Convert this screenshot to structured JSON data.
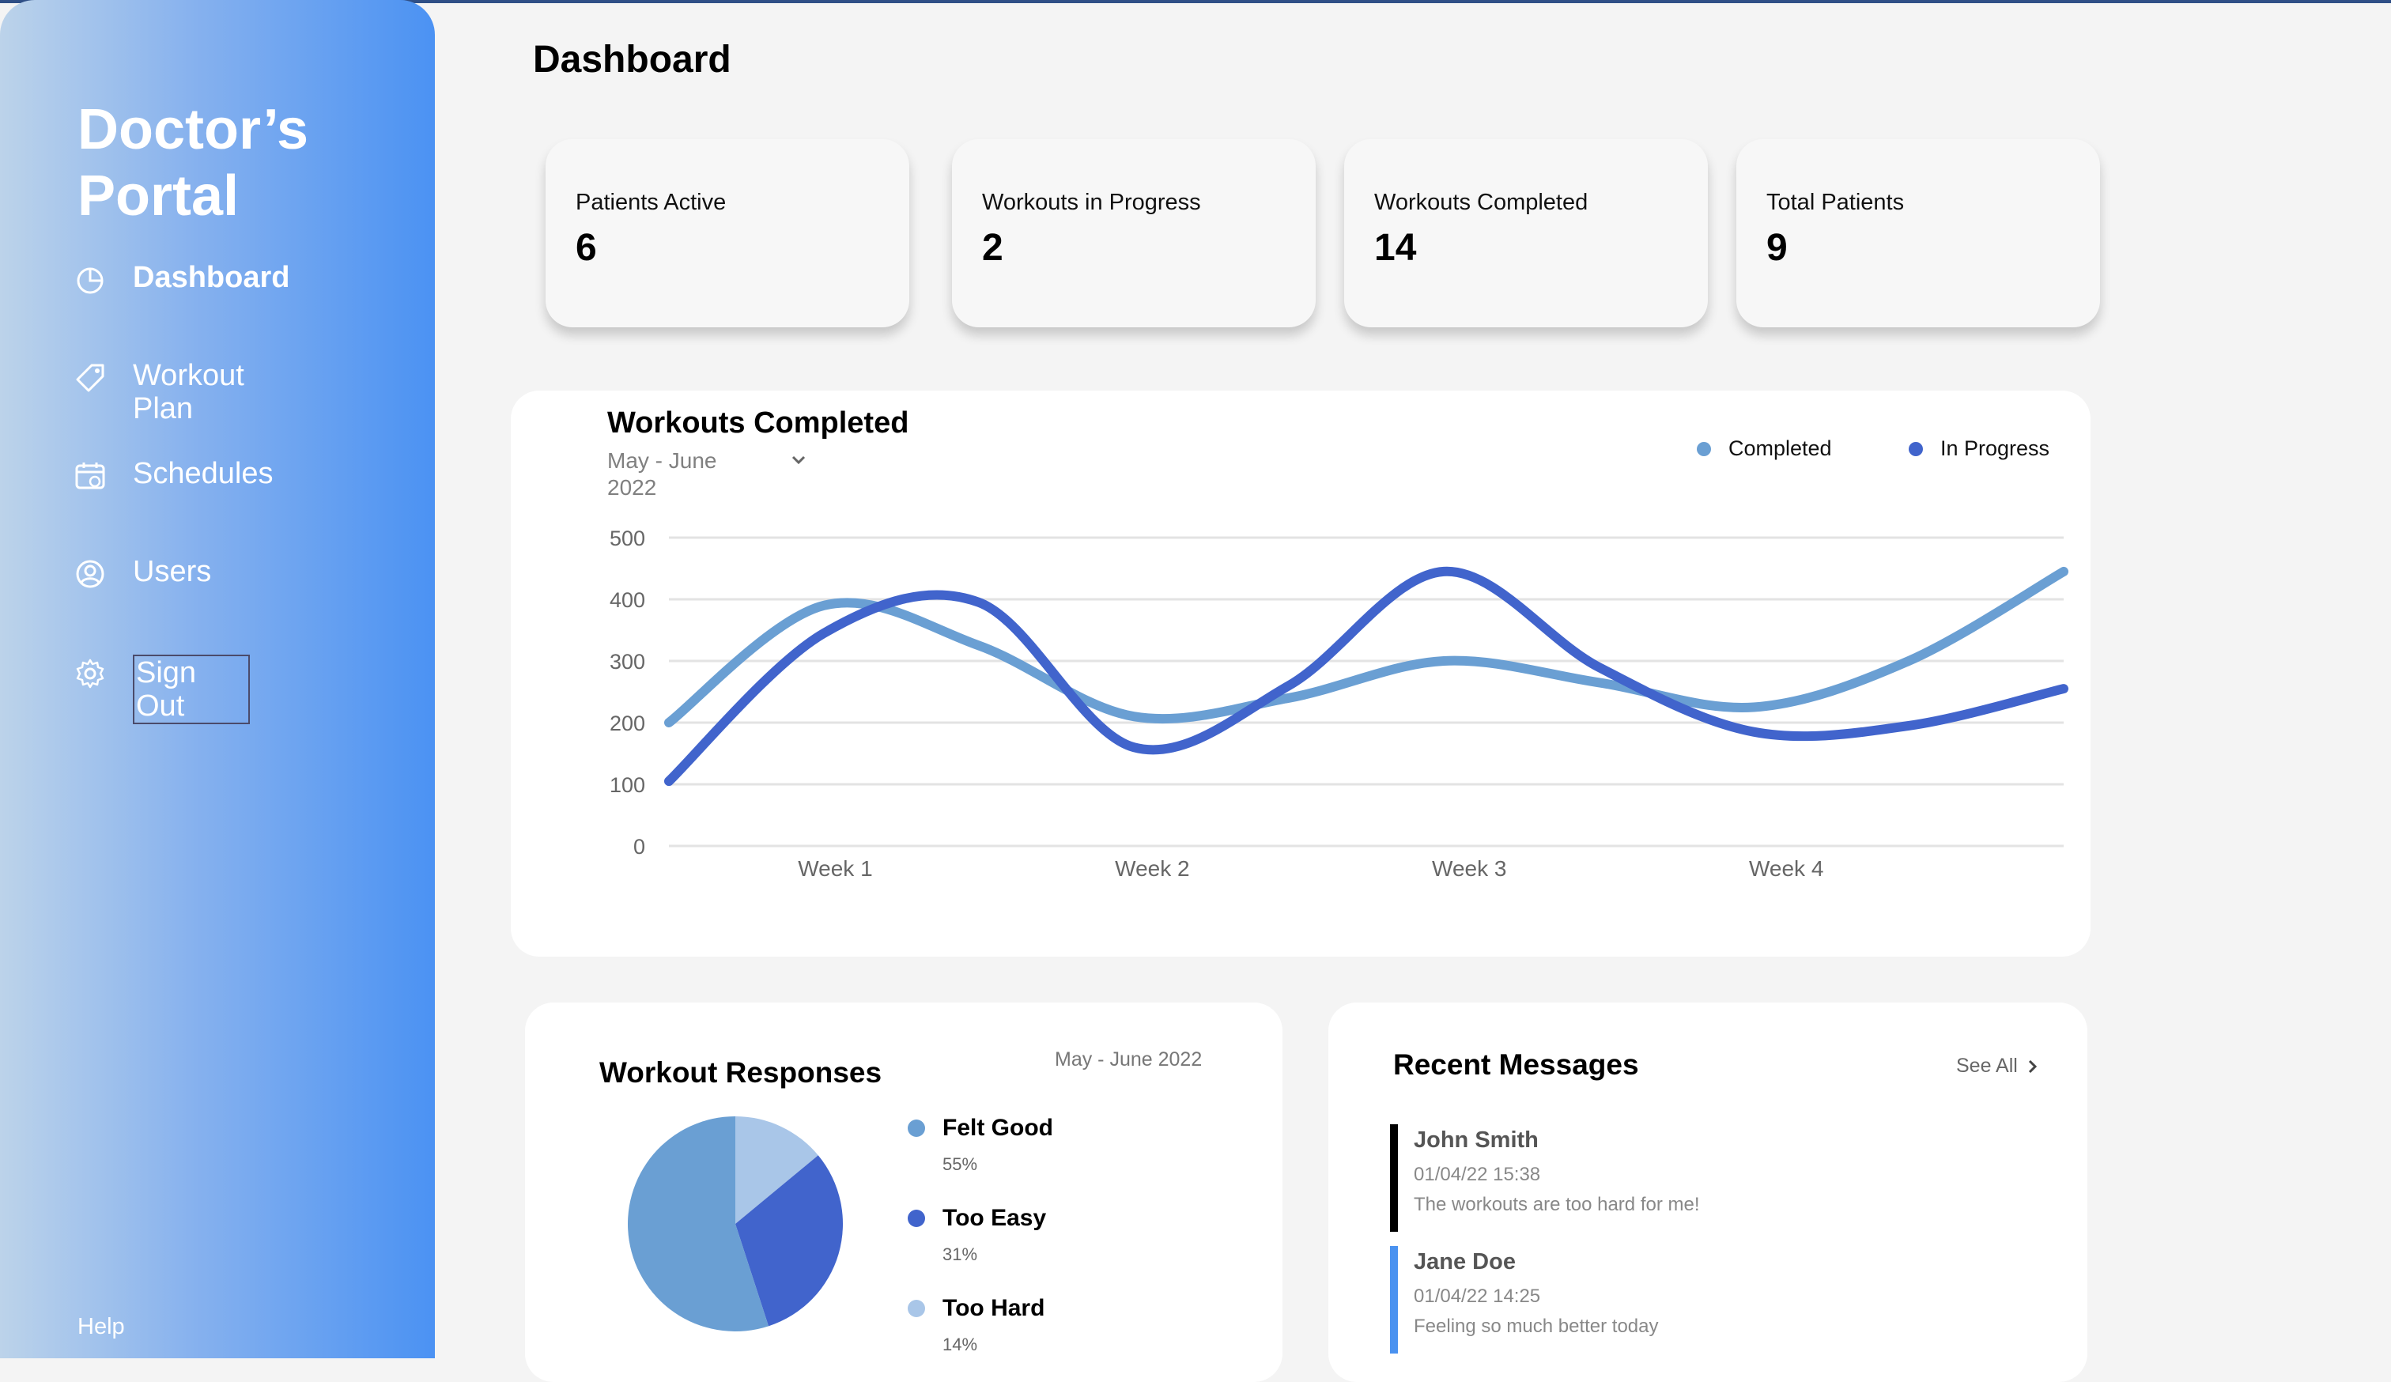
{
  "sidebar": {
    "brand": "Doctor’s Portal",
    "items": [
      {
        "label": "Dashboard",
        "icon": "pie-chart-icon"
      },
      {
        "label": "Workout Plan",
        "icon": "tag-icon"
      },
      {
        "label": "Schedules",
        "icon": "calendar-icon"
      },
      {
        "label": "Users",
        "icon": "user-circle-icon"
      },
      {
        "label": "Sign Out",
        "icon": "gear-icon"
      }
    ],
    "help": "Help"
  },
  "page_title": "Dashboard",
  "stats": [
    {
      "label": "Patients Active",
      "value": "6"
    },
    {
      "label": "Workouts in Progress",
      "value": "2"
    },
    {
      "label": "Workouts Completed",
      "value": "14"
    },
    {
      "label": "Total Patients",
      "value": "9"
    }
  ],
  "workouts_chart": {
    "title": "Workouts Completed",
    "range": "May - June 2022",
    "legend": [
      "Completed",
      "In Progress"
    ]
  },
  "responses": {
    "title": "Workout Responses",
    "range": "May - June 2022",
    "items": [
      {
        "name": "Felt Good",
        "pct": "55%"
      },
      {
        "name": "Too Easy",
        "pct": "31%"
      },
      {
        "name": "Too Hard",
        "pct": "14%"
      }
    ]
  },
  "messages": {
    "title": "Recent Messages",
    "see_all": "See All",
    "items": [
      {
        "from": "John Smith",
        "time": "01/04/22 15:38",
        "text": "The workouts are too hard for me!",
        "color": "#000000"
      },
      {
        "from": "Jane Doe",
        "time": "01/04/22 14:25",
        "text": "Feeling so much better today",
        "color": "#4a92f0"
      }
    ]
  },
  "colors": {
    "completed": "#6a9fd3",
    "in_progress": "#4164cc",
    "too_hard": "#a9c6e8"
  },
  "chart_data": [
    {
      "type": "line",
      "title": "Workouts Completed",
      "subtitle": "May - June 2022",
      "categories": [
        "Week 1",
        "Week 2",
        "Week 3",
        "Week 4"
      ],
      "x": [
        0,
        1,
        2,
        3,
        4,
        5,
        6,
        7,
        8,
        9
      ],
      "yticks": [
        0,
        100,
        200,
        300,
        400,
        500
      ],
      "ylim": [
        0,
        500
      ],
      "grid": true,
      "legend_position": "top-right",
      "series": [
        {
          "name": "Completed",
          "values": [
            200,
            390,
            325,
            210,
            240,
            300,
            265,
            225,
            300,
            445
          ]
        },
        {
          "name": "In Progress",
          "values": [
            105,
            345,
            395,
            160,
            260,
            445,
            290,
            185,
            195,
            255
          ]
        }
      ]
    },
    {
      "type": "pie",
      "title": "Workout Responses",
      "categories": [
        "Felt Good",
        "Too Easy",
        "Too Hard"
      ],
      "values": [
        55,
        31,
        14
      ]
    }
  ]
}
